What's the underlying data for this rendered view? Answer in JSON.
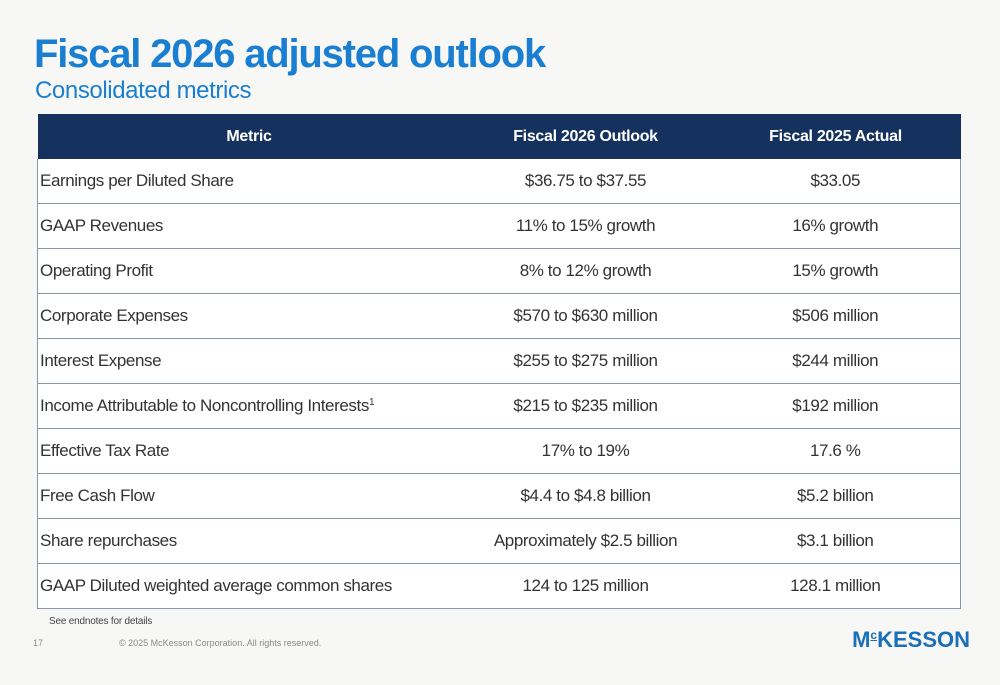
{
  "title": "Fiscal 2026 adjusted outlook",
  "subtitle": "Consolidated metrics",
  "table": {
    "headers": [
      "Metric",
      "Fiscal 2026 Outlook",
      "Fiscal 2025 Actual"
    ],
    "rows": [
      {
        "metric": "Earnings per Diluted Share",
        "sup": "",
        "outlook": "$36.75 to $37.55",
        "actual": "$33.05"
      },
      {
        "metric": "GAAP Revenues",
        "sup": "",
        "outlook": "11% to 15% growth",
        "actual": "16% growth"
      },
      {
        "metric": "Operating Profit",
        "sup": "",
        "outlook": "8% to 12% growth",
        "actual": "15% growth"
      },
      {
        "metric": "Corporate Expenses",
        "sup": "",
        "outlook": "$570 to $630 million",
        "actual": "$506 million"
      },
      {
        "metric": "Interest Expense",
        "sup": "",
        "outlook": "$255 to $275 million",
        "actual": "$244 million"
      },
      {
        "metric": "Income Attributable to Noncontrolling Interests",
        "sup": "1",
        "outlook": "$215 to $235 million",
        "actual": "$192 million"
      },
      {
        "metric": "Effective Tax Rate",
        "sup": "",
        "outlook": "17% to 19%",
        "actual": "17.6 %"
      },
      {
        "metric": "Free Cash Flow",
        "sup": "",
        "outlook": "$4.4 to $4.8 billion",
        "actual": "$5.2 billion"
      },
      {
        "metric": "Share repurchases",
        "sup": "",
        "outlook": "Approximately $2.5 billion",
        "actual": "$3.1 billion"
      },
      {
        "metric": "GAAP Diluted weighted average common shares",
        "sup": "",
        "outlook": "124 to 125 million",
        "actual": "128.1 million"
      }
    ]
  },
  "footer": {
    "endnote": "See endnotes for details",
    "page_number": "17",
    "copyright": "© 2025 McKesson Corporation. All rights reserved.",
    "logo": {
      "part1": "M",
      "part2": "c",
      "part3": "KESSON"
    }
  },
  "colors": {
    "title": "#1a7fd0",
    "header_bg": "#15325e",
    "header_text": "#ffffff",
    "logo": "#1a6fb8",
    "page_bg": "#f7f7f5"
  }
}
